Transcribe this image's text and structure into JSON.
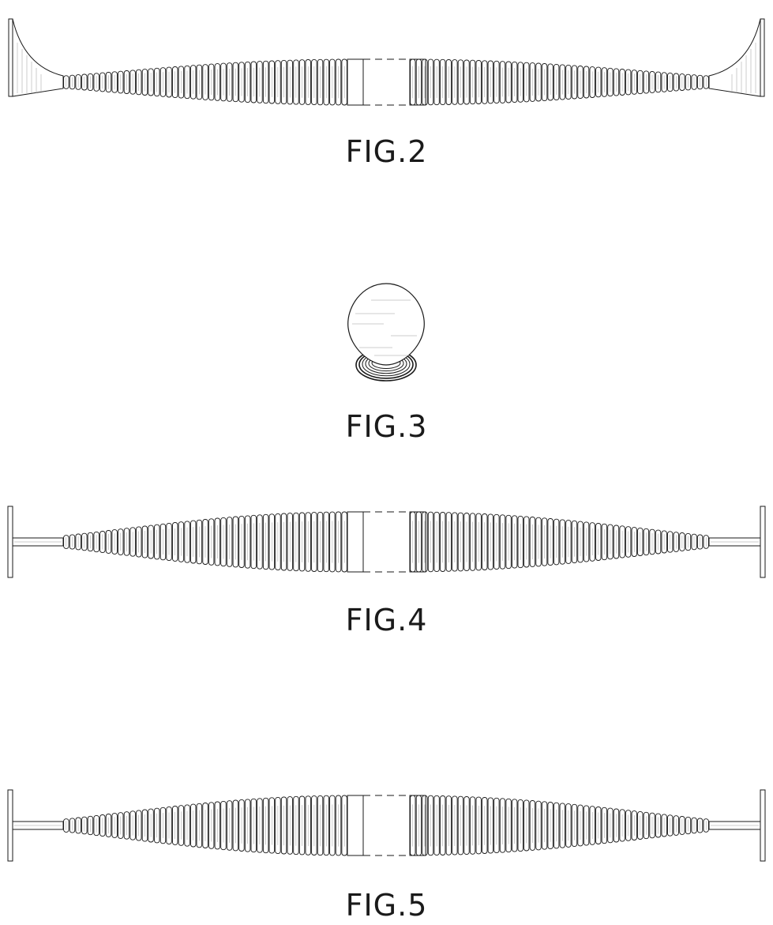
{
  "figures": [
    {
      "label": "FIG.2",
      "view": "bowed"
    },
    {
      "label": "FIG.3",
      "view": "end"
    },
    {
      "label": "FIG.4",
      "view": "straight"
    },
    {
      "label": "FIG.5",
      "view": "straight"
    }
  ],
  "colors": {
    "line": "#1a1a1a",
    "shade": "#9a9a9a",
    "background": "#ffffff"
  }
}
